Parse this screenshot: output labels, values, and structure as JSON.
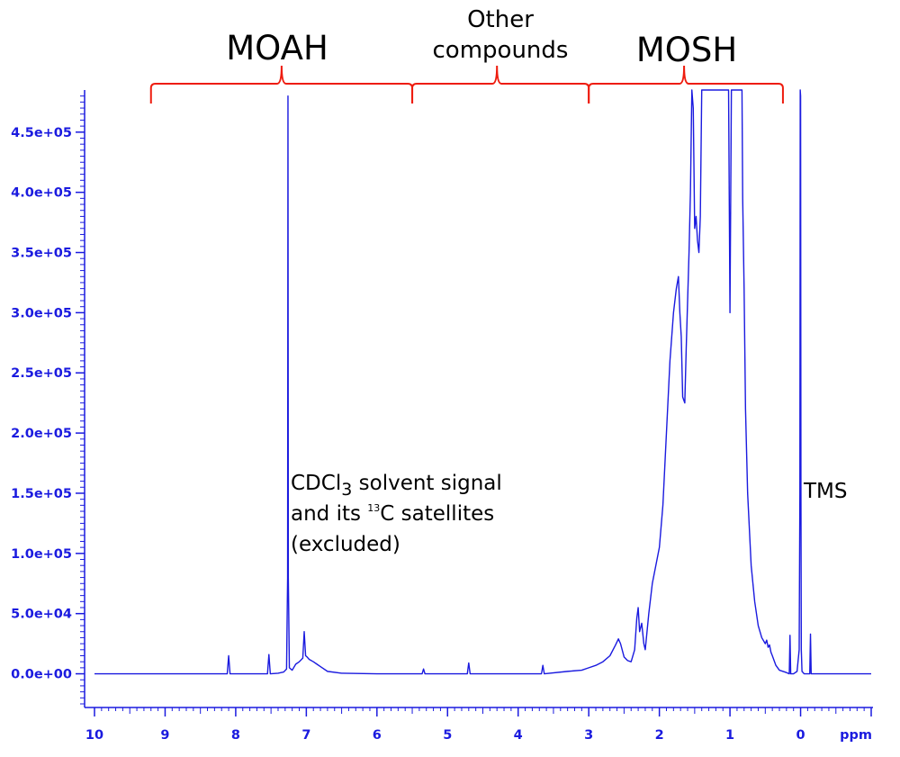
{
  "chart_data": {
    "type": "line",
    "title": "",
    "xlabel": "ppm",
    "ylabel": "",
    "xlim": [
      10,
      -1
    ],
    "x_reversed": true,
    "ylim": [
      -28000,
      485000
    ],
    "grid": false,
    "x_ticks": [
      10,
      9,
      8,
      7,
      6,
      5,
      4,
      3,
      2,
      1,
      0
    ],
    "x_tick_labels": [
      "10",
      "9",
      "8",
      "7",
      "6",
      "5",
      "4",
      "3",
      "2",
      "1",
      "0"
    ],
    "y_ticks": [
      0,
      50000,
      100000,
      150000,
      200000,
      250000,
      300000,
      350000,
      400000,
      450000
    ],
    "y_tick_labels": [
      "0.0e+00",
      "5.0e+04",
      "1.0e+05",
      "1.5e+05",
      "2.0e+05",
      "2.5e+05",
      "3.0e+05",
      "3.5e+05",
      "4.0e+05",
      "4.5e+05"
    ],
    "series": [
      {
        "color": "#1a1adf",
        "x": [
          10.0,
          9.0,
          8.5,
          8.12,
          8.1,
          8.08,
          8.0,
          7.55,
          7.53,
          7.51,
          7.4,
          7.32,
          7.28,
          7.265,
          7.26,
          7.255,
          7.24,
          7.2,
          7.15,
          7.1,
          7.05,
          7.03,
          7.01,
          6.99,
          6.96,
          6.9,
          6.85,
          6.8,
          6.7,
          6.5,
          6.0,
          5.5,
          5.36,
          5.34,
          5.32,
          5.0,
          4.72,
          4.7,
          4.68,
          4.0,
          3.67,
          3.65,
          3.63,
          3.3,
          3.1,
          3.0,
          2.9,
          2.8,
          2.7,
          2.62,
          2.58,
          2.55,
          2.5,
          2.45,
          2.4,
          2.35,
          2.32,
          2.3,
          2.28,
          2.25,
          2.22,
          2.2,
          2.15,
          2.1,
          2.05,
          2.0,
          1.95,
          1.9,
          1.85,
          1.8,
          1.76,
          1.73,
          1.71,
          1.69,
          1.67,
          1.64,
          1.62,
          1.6,
          1.58,
          1.56,
          1.54,
          1.52,
          1.5,
          1.48,
          1.46,
          1.44,
          1.42,
          1.4,
          1.38,
          1.36,
          1.34,
          1.32,
          1.3,
          1.2,
          1.1,
          1.04,
          1.02,
          1.0,
          0.98,
          0.96,
          0.94,
          0.92,
          0.9,
          0.88,
          0.86,
          0.85,
          0.84,
          0.83,
          0.82,
          0.8,
          0.78,
          0.75,
          0.7,
          0.65,
          0.6,
          0.55,
          0.5,
          0.48,
          0.46,
          0.44,
          0.42,
          0.4,
          0.35,
          0.3,
          0.2,
          0.16,
          0.15,
          0.14,
          0.1,
          0.05,
          0.02,
          0.01,
          0.005,
          0.0,
          -0.005,
          -0.01,
          -0.02,
          -0.05,
          -0.1,
          -0.13,
          -0.14,
          -0.15,
          -0.2,
          -0.5,
          -1.0
        ],
        "y": [
          0,
          0,
          0,
          0,
          15000,
          0,
          0,
          0,
          16000,
          0,
          500,
          1500,
          4000,
          80000,
          480000,
          80000,
          5000,
          3000,
          8000,
          10000,
          13000,
          35000,
          15000,
          14000,
          12000,
          10000,
          8000,
          6000,
          2000,
          500,
          0,
          0,
          0,
          4000,
          0,
          0,
          0,
          9000,
          0,
          0,
          0,
          7000,
          0,
          2000,
          3000,
          5000,
          7000,
          10000,
          15000,
          24000,
          29000,
          25000,
          14000,
          11000,
          10000,
          20000,
          46000,
          55000,
          35000,
          42000,
          25000,
          20000,
          50000,
          75000,
          90000,
          105000,
          140000,
          200000,
          260000,
          300000,
          320000,
          330000,
          300000,
          280000,
          230000,
          225000,
          270000,
          310000,
          350000,
          400000,
          485000,
          470000,
          370000,
          380000,
          360000,
          350000,
          380000,
          485000,
          485000,
          485000,
          485000,
          485000,
          485000,
          485000,
          485000,
          485000,
          485000,
          300000,
          485000,
          485000,
          485000,
          485000,
          485000,
          485000,
          485000,
          485000,
          485000,
          485000,
          395000,
          320000,
          220000,
          150000,
          90000,
          60000,
          40000,
          30000,
          25000,
          28000,
          22000,
          24000,
          18000,
          15000,
          7000,
          3000,
          1000,
          0,
          32000,
          0,
          0,
          2000,
          20000,
          150000,
          485000,
          480000,
          150000,
          20000,
          2000,
          0,
          0,
          0,
          33000,
          0,
          0,
          0,
          0
        ]
      }
    ],
    "regions": [
      {
        "label": "MOAH",
        "from": 9.2,
        "to": 5.5,
        "peak": 7.35
      },
      {
        "label_line1": "Other",
        "label_line2": "compounds",
        "from": 5.5,
        "to": 3.0,
        "peak": 4.3
      },
      {
        "label": "MOSH",
        "from": 3.0,
        "to": 0.25,
        "peak": 1.65
      }
    ],
    "annotations": {
      "cdcl3_line1_prefix": "CDCl",
      "cdcl3_line1_sub": "3",
      "cdcl3_line1_suffix": " solvent signal",
      "cdcl3_line2_prefix": "and its ",
      "cdcl3_line2_sup": "13",
      "cdcl3_line2_suffix": "C satellites",
      "cdcl3_line3": "(excluded)",
      "tms": "TMS"
    }
  }
}
